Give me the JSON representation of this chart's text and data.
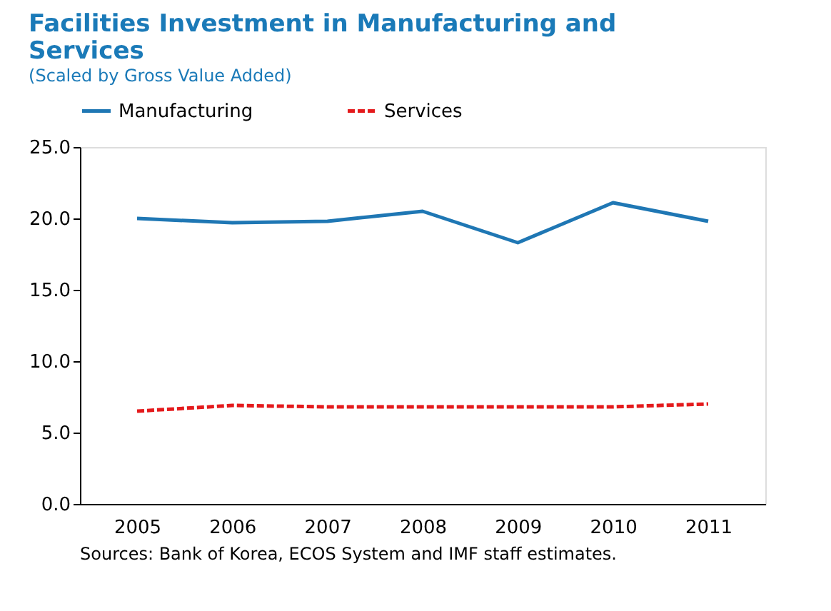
{
  "chart_data": {
    "type": "line",
    "title": "Facilities Investment in Manufacturing and Services",
    "subtitle": "(Scaled by Gross Value Added)",
    "categories": [
      "2005",
      "2006",
      "2007",
      "2008",
      "2009",
      "2010",
      "2011"
    ],
    "series": [
      {
        "name": "Manufacturing",
        "color": "#1f77b4",
        "line_style": "solid",
        "values": [
          20.0,
          19.7,
          19.8,
          20.5,
          18.3,
          21.1,
          19.8
        ]
      },
      {
        "name": "Services",
        "color": "#e41a1c",
        "line_style": "dashed",
        "values": [
          6.5,
          6.9,
          6.8,
          6.8,
          6.8,
          6.8,
          7.0
        ]
      }
    ],
    "ylim": [
      0,
      25
    ],
    "yticks": [
      {
        "value": 0,
        "label": "0.0"
      },
      {
        "value": 5,
        "label": "5.0"
      },
      {
        "value": 10,
        "label": "10.0"
      },
      {
        "value": 15,
        "label": "15.0"
      },
      {
        "value": 20,
        "label": "20.0"
      },
      {
        "value": 25,
        "label": "25.0"
      }
    ],
    "grid": false,
    "legend": "top",
    "marker": "none",
    "annotations": [
      "Sources: Bank of Korea, ECOS System and IMF staff estimates."
    ]
  }
}
